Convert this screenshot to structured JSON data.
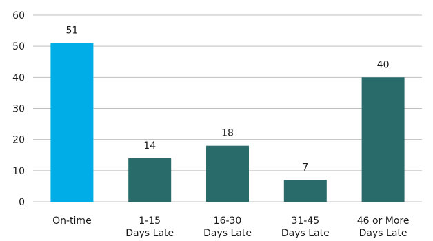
{
  "chart_data": {
    "type": "bar",
    "title": "",
    "xlabel": "",
    "ylabel": "",
    "ylim": [
      0,
      60
    ],
    "yticks": [
      0,
      10,
      20,
      30,
      40,
      50,
      60
    ],
    "grid": true,
    "categories": [
      [
        "On-time"
      ],
      [
        "1-15",
        "Days Late"
      ],
      [
        "16-30",
        "Days Late"
      ],
      [
        "31-45",
        "Days Late"
      ],
      [
        "46 or More",
        "Days Late"
      ]
    ],
    "values": [
      51,
      14,
      18,
      7,
      40
    ],
    "data_labels": [
      "51",
      "14",
      "18",
      "7",
      "40"
    ],
    "colors": [
      "#00ade6",
      "#296b6b",
      "#296b6b",
      "#296b6b",
      "#296b6b"
    ],
    "grid_color": "#bfbfbf"
  }
}
